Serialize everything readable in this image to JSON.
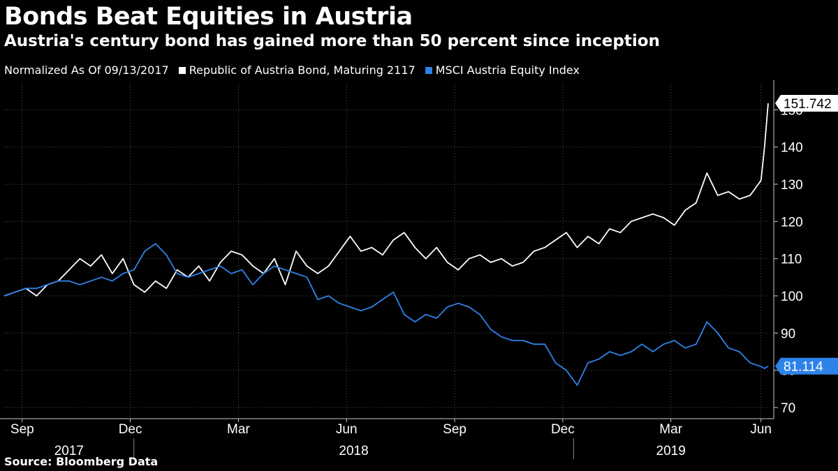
{
  "header": {
    "title": "Bonds Beat Equities in Austria",
    "subtitle": "Austria's century bond has gained more than 50 percent since inception"
  },
  "legend": {
    "normalized": "Normalized As Of 09/13/2017",
    "items": [
      {
        "name": "Republic of Austria Bond, Maturing 2117",
        "color": "#ffffff"
      },
      {
        "name": "MSCI Austria Equity Index",
        "color": "#2d83e8"
      }
    ]
  },
  "footer": {
    "source": "Source: Bloomberg Data"
  },
  "chart_data": {
    "type": "line",
    "ylim": [
      67,
      157
    ],
    "xlim": [
      0,
      21.2
    ],
    "yticks": [
      70,
      80,
      90,
      100,
      110,
      120,
      130,
      140,
      150
    ],
    "xticks": [
      {
        "x": 0.5,
        "label": "Sep"
      },
      {
        "x": 3.5,
        "label": "Dec"
      },
      {
        "x": 6.5,
        "label": "Mar"
      },
      {
        "x": 9.5,
        "label": "Jun"
      },
      {
        "x": 12.5,
        "label": "Sep"
      },
      {
        "x": 15.5,
        "label": "Dec"
      },
      {
        "x": 18.5,
        "label": "Mar"
      },
      {
        "x": 21.0,
        "label": "Jun"
      }
    ],
    "years": [
      {
        "label": "2017",
        "from": 0,
        "to": 3.6
      },
      {
        "label": "2018",
        "from": 3.6,
        "to": 15.8
      },
      {
        "label": "2019",
        "from": 15.8,
        "to": 21.2
      }
    ],
    "series": [
      {
        "name": "Republic of Austria Bond, Maturing 2117",
        "color": "#ffffff",
        "last_label": "151.742",
        "x": [
          0.0,
          0.3,
          0.6,
          0.9,
          1.2,
          1.5,
          1.8,
          2.1,
          2.4,
          2.7,
          3.0,
          3.3,
          3.6,
          3.9,
          4.2,
          4.5,
          4.8,
          5.1,
          5.4,
          5.7,
          6.0,
          6.3,
          6.6,
          6.9,
          7.2,
          7.5,
          7.8,
          8.1,
          8.4,
          8.7,
          9.0,
          9.3,
          9.6,
          9.9,
          10.2,
          10.5,
          10.8,
          11.1,
          11.4,
          11.7,
          12.0,
          12.3,
          12.6,
          12.9,
          13.2,
          13.5,
          13.8,
          14.1,
          14.4,
          14.7,
          15.0,
          15.3,
          15.6,
          15.9,
          16.2,
          16.5,
          16.8,
          17.1,
          17.4,
          17.7,
          18.0,
          18.3,
          18.6,
          18.9,
          19.2,
          19.5,
          19.8,
          20.1,
          20.4,
          20.7,
          21.0,
          21.1,
          21.2
        ],
        "values": [
          100,
          101,
          102,
          100,
          103,
          104,
          107,
          110,
          108,
          111,
          106,
          110,
          103,
          101,
          104,
          102,
          107,
          105,
          108,
          104,
          109,
          112,
          111,
          108,
          106,
          110,
          103,
          112,
          108,
          106,
          108,
          112,
          116,
          112,
          113,
          111,
          115,
          117,
          113,
          110,
          113,
          109,
          107,
          110,
          111,
          109,
          110,
          108,
          109,
          112,
          113,
          115,
          117,
          113,
          116,
          114,
          118,
          117,
          120,
          121,
          122,
          121,
          119,
          123,
          125,
          133,
          127,
          128,
          126,
          127,
          131,
          140,
          151.742
        ]
      },
      {
        "name": "MSCI Austria Equity Index",
        "color": "#2d83e8",
        "last_label": "81.114",
        "x": [
          0.0,
          0.3,
          0.6,
          0.9,
          1.2,
          1.5,
          1.8,
          2.1,
          2.4,
          2.7,
          3.0,
          3.3,
          3.6,
          3.9,
          4.2,
          4.5,
          4.8,
          5.1,
          5.4,
          5.7,
          6.0,
          6.3,
          6.6,
          6.9,
          7.2,
          7.5,
          7.8,
          8.1,
          8.4,
          8.7,
          9.0,
          9.3,
          9.6,
          9.9,
          10.2,
          10.5,
          10.8,
          11.1,
          11.4,
          11.7,
          12.0,
          12.3,
          12.6,
          12.9,
          13.2,
          13.5,
          13.8,
          14.1,
          14.4,
          14.7,
          15.0,
          15.3,
          15.6,
          15.9,
          16.2,
          16.5,
          16.8,
          17.1,
          17.4,
          17.7,
          18.0,
          18.3,
          18.6,
          18.9,
          19.2,
          19.5,
          19.8,
          20.1,
          20.4,
          20.7,
          21.0,
          21.1,
          21.2
        ],
        "values": [
          100,
          101,
          102,
          102,
          103,
          104,
          104,
          103,
          104,
          105,
          104,
          106,
          107,
          112,
          114,
          111,
          106,
          105,
          106,
          107,
          108,
          106,
          107,
          103,
          106,
          108,
          107,
          106,
          105,
          99,
          100,
          98,
          97,
          96,
          97,
          99,
          101,
          95,
          93,
          95,
          94,
          97,
          98,
          97,
          95,
          91,
          89,
          88,
          88,
          87,
          87,
          82,
          80,
          76,
          82,
          83,
          85,
          84,
          85,
          87,
          85,
          87,
          88,
          86,
          87,
          93,
          90,
          86,
          85,
          82,
          81,
          80.5,
          81.114
        ]
      }
    ]
  }
}
